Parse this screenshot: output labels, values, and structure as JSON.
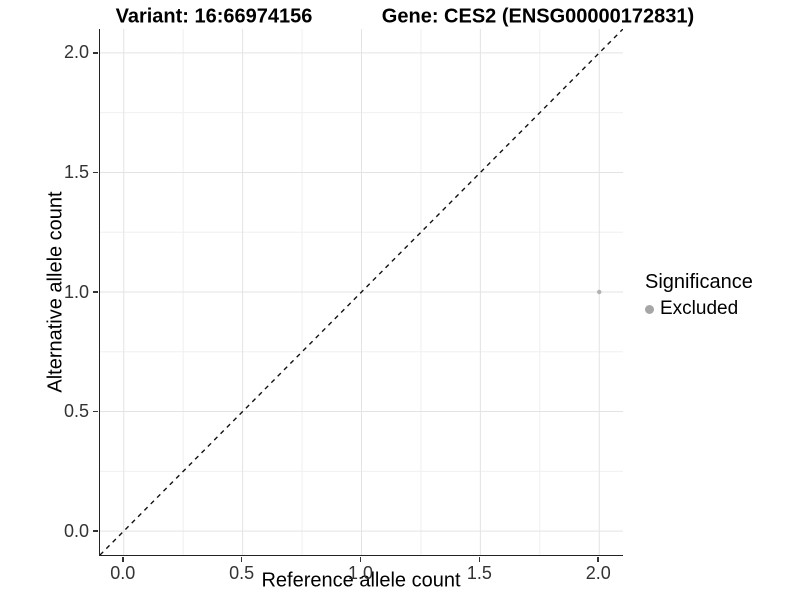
{
  "chart_data": {
    "type": "scatter",
    "title_left": "Variant: 16:66974156",
    "title_right": "Gene: CES2 (ENSG00000172831)",
    "xlabel": "Reference allele count",
    "ylabel": "Alternative allele count",
    "xlim": [
      -0.1,
      2.1
    ],
    "ylim": [
      -0.1,
      2.1
    ],
    "xticks": [
      0.0,
      0.5,
      1.0,
      1.5,
      2.0
    ],
    "yticks": [
      0.0,
      0.5,
      1.0,
      1.5,
      2.0
    ],
    "xtick_labels": [
      "0.0",
      "0.5",
      "1.0",
      "1.5",
      "2.0"
    ],
    "ytick_labels": [
      "0.0",
      "0.5",
      "1.0",
      "1.5",
      "2.0"
    ],
    "minor_xticks": [
      0.25,
      0.75,
      1.25,
      1.75
    ],
    "minor_yticks": [
      0.25,
      0.75,
      1.25,
      1.75
    ],
    "grid": true,
    "points": [
      {
        "x": 2.0,
        "y": 1.0,
        "significance": "Excluded"
      }
    ],
    "reference_line": {
      "style": "dashed",
      "from": [
        -0.1,
        -0.1
      ],
      "to": [
        2.1,
        2.1
      ],
      "equation": "y = x"
    },
    "legend": {
      "position": "right",
      "title": "Significance",
      "entries": [
        {
          "label": "Excluded",
          "color": "#a6a6a6"
        }
      ]
    },
    "colors": {
      "point": "#b0b0b0",
      "grid_major": "#e3e3e3",
      "grid_minor": "#f0f0f0",
      "axis_line": "#222222",
      "tick_mark": "#333333",
      "tick_text": "#333333",
      "reference_line": "#111111"
    }
  }
}
